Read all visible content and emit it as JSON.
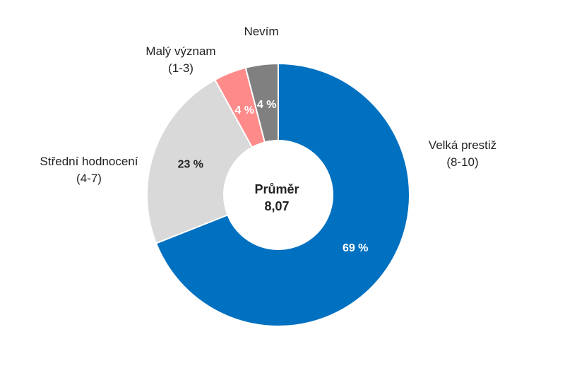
{
  "chart_data": {
    "type": "pie",
    "style": "donut",
    "categories": [
      {
        "name": "Velká prestiž",
        "range": "(8-10)",
        "value": 69,
        "label": "69 %",
        "color": "#0070C0",
        "label_color": "#ffffff"
      },
      {
        "name": "Střední hodnocení",
        "range": "(4-7)",
        "value": 23,
        "label": "23 %",
        "color": "#D9D9D9",
        "label_color": "#222222"
      },
      {
        "name": "Malý význam",
        "range": "(1-3)",
        "value": 4,
        "label": "4 %",
        "color": "#FF8A8A",
        "label_color": "#ffffff"
      },
      {
        "name": "Nevím",
        "range": "",
        "value": 4,
        "label": "4 %",
        "color": "#808080",
        "label_color": "#ffffff"
      }
    ],
    "center": {
      "title": "Průměr",
      "value": "8,07"
    },
    "start": "12 o'clock",
    "direction": "clockwise",
    "slice_border_color": "#ffffff"
  }
}
